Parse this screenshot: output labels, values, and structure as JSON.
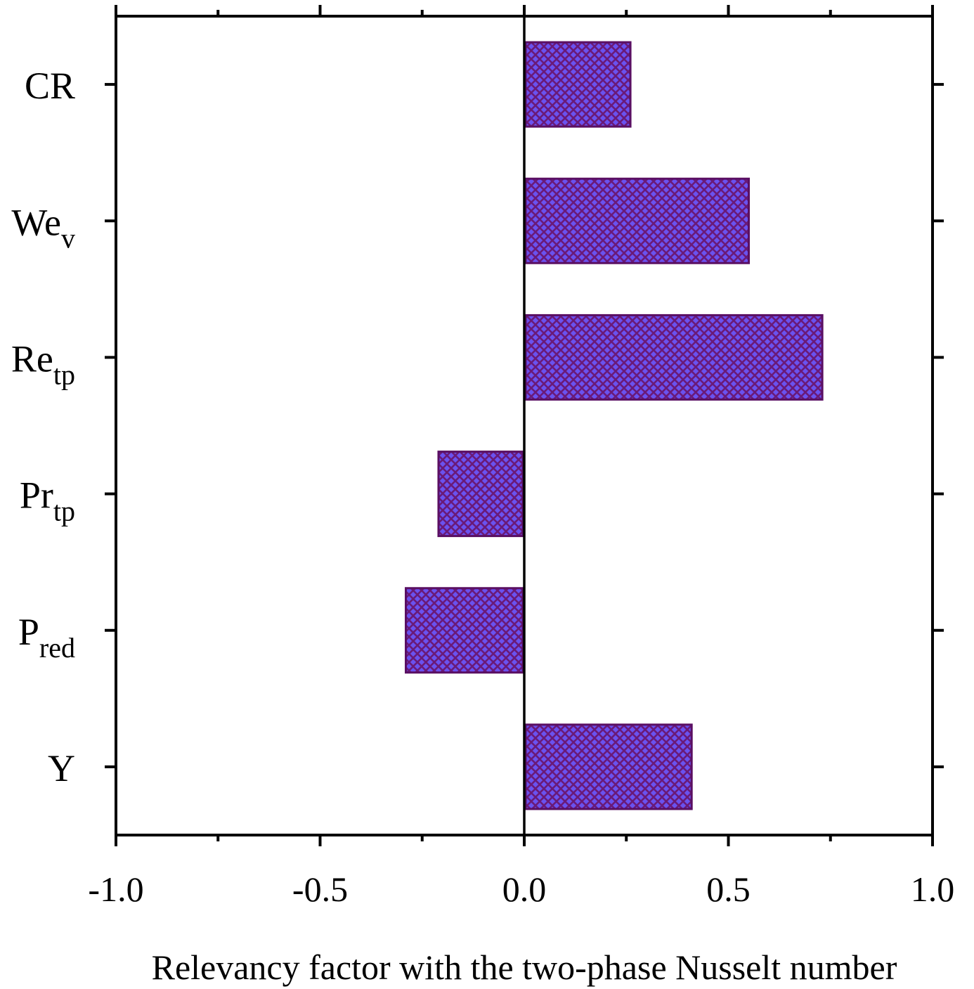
{
  "chart_data": {
    "type": "bar",
    "orientation": "horizontal",
    "xlabel": "Relevancy factor with the two-phase Nusselt number",
    "ylabel": "",
    "xlim": [
      -1.0,
      1.0
    ],
    "xticks": [
      -1.0,
      -0.5,
      0.0,
      0.5,
      1.0
    ],
    "xtick_labels": [
      "-1.0",
      "-0.5",
      "0.0",
      "0.5",
      "1.0"
    ],
    "grid": false,
    "legend": "none",
    "categories": [
      {
        "base": "CR",
        "sub": ""
      },
      {
        "base": "We",
        "sub": "v"
      },
      {
        "base": "Re",
        "sub": "tp"
      },
      {
        "base": "Pr",
        "sub": "tp"
      },
      {
        "base": "P",
        "sub": "red"
      },
      {
        "base": "Y",
        "sub": ""
      }
    ],
    "values": [
      0.26,
      0.55,
      0.73,
      -0.21,
      -0.29,
      0.41
    ],
    "colors": {
      "bar_fill": "#6a52f0",
      "bar_pattern": "#6a1a78",
      "bar_edge": "#5a0f63",
      "axis": "#000000"
    }
  }
}
